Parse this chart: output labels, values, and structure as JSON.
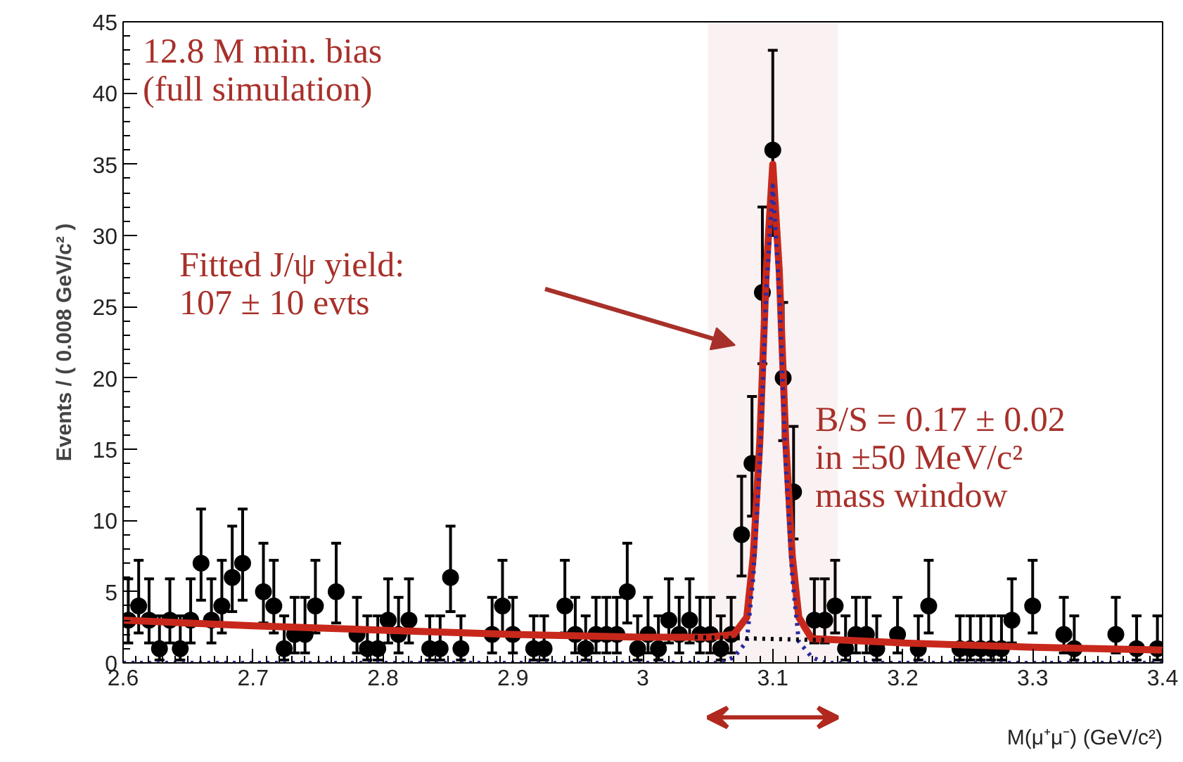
{
  "chart_data": {
    "type": "scatter",
    "xlabel": "M(μ⁺μ⁻) (GeV/c²)",
    "ylabel": "Events / ( 0.008 GeV/c² )",
    "xlim": [
      2.6,
      3.4
    ],
    "ylim": [
      0,
      45
    ],
    "xticks": [
      2.6,
      2.7,
      2.8,
      2.9,
      3,
      3.1,
      3.2,
      3.3,
      3.4
    ],
    "yticks": [
      0,
      5,
      10,
      15,
      20,
      25,
      30,
      35,
      40,
      45
    ],
    "grid": false,
    "annotations": [
      "12.8 M min. bias\n(full simulation)",
      "Fitted J/ψ yield:\n107 ± 10 evts",
      "B/S = 0.17 ± 0.02\nin ±50 MeV/c²\nmass window"
    ],
    "bands": [
      {
        "axis": "x",
        "from": 3.05,
        "to": 3.15,
        "label": null,
        "color": "#b0281e"
      }
    ],
    "series": [
      {
        "color": "#000000",
        "marker": "circle",
        "x": [
          2.604,
          2.612,
          2.62,
          2.628,
          2.636,
          2.644,
          2.652,
          2.66,
          2.668,
          2.676,
          2.684,
          2.692,
          2.708,
          2.716,
          2.724,
          2.732,
          2.74,
          2.748,
          2.764,
          2.78,
          2.788,
          2.796,
          2.804,
          2.812,
          2.82,
          2.836,
          2.844,
          2.852,
          2.86,
          2.884,
          2.892,
          2.9,
          2.916,
          2.924,
          2.94,
          2.948,
          2.956,
          2.964,
          2.972,
          2.98,
          2.988,
          2.996,
          3.004,
          3.012,
          3.02,
          3.028,
          3.036,
          3.044,
          3.052,
          3.06,
          3.068,
          3.076,
          3.084,
          3.092,
          3.1,
          3.108,
          3.116,
          3.132,
          3.14,
          3.148,
          3.156,
          3.164,
          3.172,
          3.18,
          3.196,
          3.212,
          3.22,
          3.244,
          3.252,
          3.26,
          3.268,
          3.276,
          3.284,
          3.3,
          3.324,
          3.332,
          3.364,
          3.38,
          3.396
        ],
        "values": [
          3,
          4,
          3,
          1,
          3,
          1,
          3,
          7,
          3,
          4,
          6,
          7,
          5,
          4,
          1,
          2,
          2,
          4,
          5,
          2,
          1,
          1,
          3,
          2,
          3,
          1,
          1,
          6,
          1,
          2,
          4,
          2,
          1,
          1,
          4,
          2,
          1,
          2,
          2,
          2,
          5,
          1,
          2,
          1,
          3,
          2,
          3,
          2,
          2,
          1,
          2,
          9,
          14,
          26,
          36,
          20,
          12,
          3,
          3,
          4,
          1,
          2,
          2,
          1,
          2,
          1,
          4,
          1,
          1,
          1,
          1,
          1,
          3,
          4,
          2,
          1,
          2,
          1,
          1
        ],
        "errors": [
          [
            1.4,
            5.9
          ],
          [
            2.1,
            7.2
          ],
          [
            1.4,
            5.9
          ],
          [
            0.2,
            3.3
          ],
          [
            1.4,
            5.9
          ],
          [
            0.2,
            3.3
          ],
          [
            1.4,
            5.9
          ],
          [
            4.4,
            10.8
          ],
          [
            1.4,
            5.9
          ],
          [
            2.1,
            7.2
          ],
          [
            3.6,
            9.6
          ],
          [
            4.4,
            10.8
          ],
          [
            2.8,
            8.4
          ],
          [
            2.1,
            7.2
          ],
          [
            0.2,
            3.3
          ],
          [
            0.7,
            4.6
          ],
          [
            0.7,
            4.6
          ],
          [
            2.1,
            7.2
          ],
          [
            2.8,
            8.4
          ],
          [
            0.7,
            4.6
          ],
          [
            0.2,
            3.3
          ],
          [
            0.2,
            3.3
          ],
          [
            1.4,
            5.9
          ],
          [
            0.7,
            4.6
          ],
          [
            1.4,
            5.9
          ],
          [
            0.2,
            3.3
          ],
          [
            0.2,
            3.3
          ],
          [
            3.6,
            9.6
          ],
          [
            0.2,
            3.3
          ],
          [
            0.7,
            4.6
          ],
          [
            2.1,
            7.2
          ],
          [
            0.7,
            4.6
          ],
          [
            0.2,
            3.3
          ],
          [
            0.2,
            3.3
          ],
          [
            2.1,
            7.2
          ],
          [
            0.7,
            4.6
          ],
          [
            0.2,
            3.3
          ],
          [
            0.7,
            4.6
          ],
          [
            0.7,
            4.6
          ],
          [
            0.7,
            4.6
          ],
          [
            2.8,
            8.4
          ],
          [
            0.2,
            3.3
          ],
          [
            0.7,
            4.6
          ],
          [
            0.2,
            3.3
          ],
          [
            1.4,
            5.9
          ],
          [
            0.7,
            4.6
          ],
          [
            1.4,
            5.9
          ],
          [
            0.7,
            4.6
          ],
          [
            0.7,
            4.6
          ],
          [
            0.2,
            3.3
          ],
          [
            0.7,
            4.6
          ],
          [
            6.1,
            13.1
          ],
          [
            10.3,
            18.7
          ],
          [
            21,
            32
          ],
          [
            30,
            43
          ],
          [
            15.6,
            25.3
          ],
          [
            8.7,
            16.6
          ],
          [
            1.4,
            5.9
          ],
          [
            1.4,
            5.9
          ],
          [
            2.1,
            7.2
          ],
          [
            0.2,
            3.3
          ],
          [
            0.7,
            4.6
          ],
          [
            0.7,
            4.6
          ],
          [
            0.2,
            3.3
          ],
          [
            0.7,
            4.6
          ],
          [
            0.2,
            3.3
          ],
          [
            2.1,
            7.2
          ],
          [
            0.2,
            3.3
          ],
          [
            0.2,
            3.3
          ],
          [
            0.2,
            3.3
          ],
          [
            0.2,
            3.3
          ],
          [
            0.2,
            3.3
          ],
          [
            1.4,
            5.9
          ],
          [
            2.1,
            7.2
          ],
          [
            0.7,
            4.6
          ],
          [
            0.2,
            3.3
          ],
          [
            0.7,
            4.6
          ],
          [
            0.2,
            3.3
          ],
          [
            0.2,
            3.3
          ]
        ]
      },
      {
        "type": "line",
        "color": "#c8281c",
        "line_style": "solid",
        "marker": "none",
        "x": [
          2.6,
          2.7,
          2.8,
          2.9,
          3.0,
          3.05,
          3.07,
          3.08,
          3.085,
          3.09,
          3.095,
          3.1,
          3.105,
          3.11,
          3.115,
          3.12,
          3.13,
          3.2,
          3.3,
          3.4
        ],
        "values": [
          3.0,
          2.6,
          2.3,
          2.0,
          1.8,
          1.8,
          2.0,
          3.2,
          7.5,
          15.5,
          27.5,
          35,
          27.5,
          15.5,
          7.5,
          3.2,
          1.7,
          1.4,
          1.1,
          0.9
        ]
      },
      {
        "type": "line",
        "color": "#2b2ba0",
        "line_style": "dotted",
        "marker": "none",
        "x": [
          2.6,
          3.06,
          3.07,
          3.08,
          3.085,
          3.09,
          3.095,
          3.1,
          3.105,
          3.11,
          3.115,
          3.12,
          3.13,
          3.14,
          3.4
        ],
        "values": [
          0,
          0,
          0.4,
          1.5,
          6,
          14,
          26,
          33.5,
          26,
          14,
          6,
          1.5,
          0.4,
          0,
          0
        ]
      },
      {
        "type": "line",
        "color": "#000000",
        "line_style": "dotted",
        "marker": "none",
        "x": [
          3.04,
          3.14
        ],
        "values": [
          1.8,
          1.6
        ]
      }
    ]
  }
}
